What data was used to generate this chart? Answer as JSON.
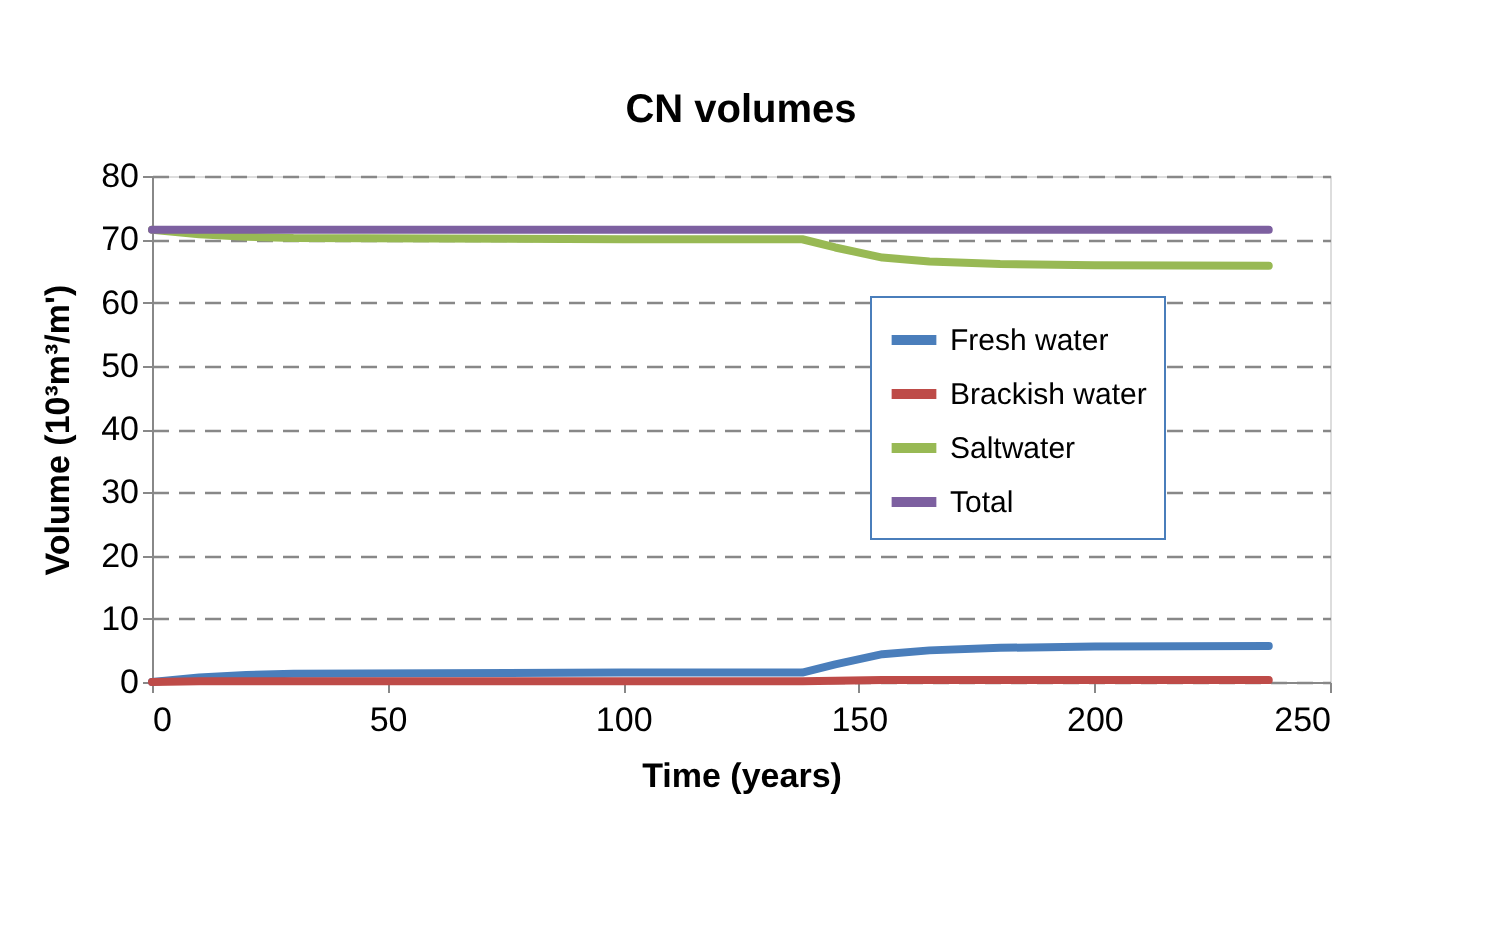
{
  "chart_data": {
    "type": "line",
    "title": "CN volumes",
    "xlabel": "Time (years)",
    "ylabel": "Volume (10³m³/m')",
    "x": [
      0,
      10,
      20,
      30,
      60,
      100,
      138,
      145,
      155,
      165,
      180,
      200,
      237
    ],
    "series": [
      {
        "name": "Fresh water",
        "color": "#4a7ebb",
        "values": [
          0,
          0.7,
          1.1,
          1.3,
          1.4,
          1.5,
          1.5,
          2.8,
          4.4,
          5.0,
          5.4,
          5.6,
          5.7
        ]
      },
      {
        "name": "Brackish water",
        "color": "#be4b48",
        "values": [
          0,
          0.1,
          0.1,
          0.1,
          0.1,
          0.1,
          0.1,
          0.2,
          0.3,
          0.3,
          0.3,
          0.3,
          0.3
        ]
      },
      {
        "name": "Saltwater",
        "color": "#98b954",
        "values": [
          71.5,
          70.8,
          70.4,
          70.2,
          70.1,
          70.0,
          70.0,
          68.7,
          67.1,
          66.5,
          66.1,
          65.9,
          65.8
        ]
      },
      {
        "name": "Total",
        "color": "#7d60a0",
        "values": [
          71.5,
          71.5,
          71.5,
          71.5,
          71.5,
          71.5,
          71.5,
          71.5,
          71.5,
          71.5,
          71.5,
          71.5,
          71.5
        ]
      }
    ],
    "xlim": [
      0,
      250
    ],
    "xticks": [
      0,
      50,
      100,
      150,
      200,
      250
    ],
    "ylim": [
      0,
      80
    ],
    "yticks": [
      0,
      10,
      20,
      30,
      40,
      50,
      60,
      70,
      80
    ],
    "grid": "y",
    "legend": "right",
    "marker": "none",
    "line_style": "solid"
  }
}
